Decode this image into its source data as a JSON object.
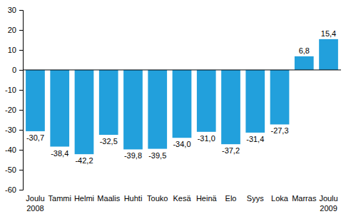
{
  "chart_data": {
    "type": "bar",
    "categories": [
      "Joulu\n2008",
      "Tammi",
      "Helmi",
      "Maalis",
      "Huhti",
      "Touko",
      "Kesä",
      "Heinä",
      "Elo",
      "Syys",
      "Loka",
      "Marras",
      "Joulu\n2009"
    ],
    "values": [
      -30.7,
      -38.4,
      -42.2,
      -32.5,
      -39.8,
      -39.5,
      -34.0,
      -31.0,
      -37.2,
      -31.4,
      -27.3,
      6.8,
      15.4
    ],
    "value_labels": [
      "-30,7",
      "-38,4",
      "-42,2",
      "-32,5",
      "-39,8",
      "-39,5",
      "-34,0",
      "-31,0",
      "-37,2",
      "-31,4",
      "-27,3",
      "6,8",
      "15,4"
    ],
    "data_labels": true,
    "color": "#22a0dc",
    "ylim": [
      -60,
      30
    ],
    "yticks": [
      -60,
      -50,
      -40,
      -30,
      -20,
      -10,
      0,
      10,
      20,
      30
    ],
    "grid": false
  }
}
